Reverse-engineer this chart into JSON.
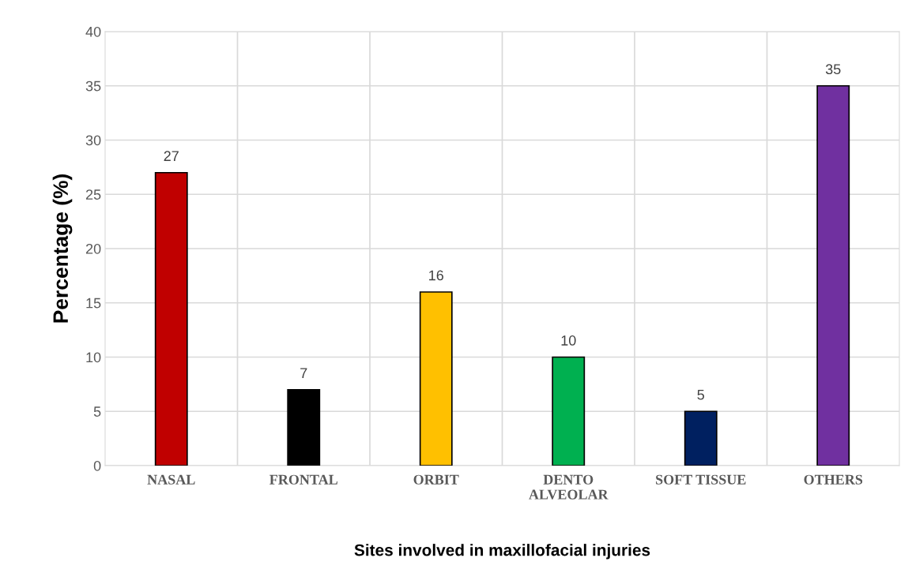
{
  "chart_data": {
    "type": "bar",
    "xlabel": "Sites involved in maxillofacial injuries",
    "ylabel": "Percentage (%)",
    "categories": [
      "NASAL",
      "FRONTAL",
      "ORBIT",
      "DENTO\nALVEOLAR",
      "SOFT TISSUE",
      "OTHERS"
    ],
    "values": [
      27,
      7,
      16,
      10,
      5,
      35
    ],
    "colors": [
      "#c00000",
      "#000000",
      "#ffc000",
      "#00b050",
      "#002060",
      "#7030a0"
    ],
    "ylim": [
      0,
      40
    ],
    "yticks": [
      0,
      5,
      10,
      15,
      20,
      25,
      30,
      35,
      40
    ],
    "grid": true,
    "data_labels": true
  }
}
